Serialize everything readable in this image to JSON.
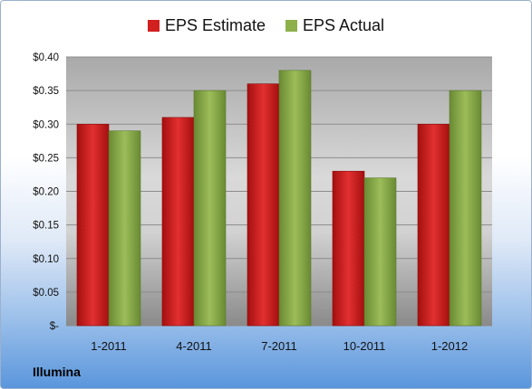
{
  "chart_data": {
    "type": "bar",
    "title": "",
    "xlabel": "",
    "ylabel": "",
    "categories": [
      "1-2011",
      "4-2011",
      "7-2011",
      "10-2011",
      "1-2012"
    ],
    "series": [
      {
        "name": "EPS Estimate",
        "values": [
          0.3,
          0.31,
          0.36,
          0.23,
          0.3
        ],
        "color": "#d21f1f"
      },
      {
        "name": "EPS Actual",
        "values": [
          0.29,
          0.35,
          0.38,
          0.22,
          0.35
        ],
        "color": "#8db04a"
      }
    ],
    "ylim": [
      0,
      0.4
    ],
    "y_ticks": [
      {
        "value": 0.4,
        "label": "$0.40"
      },
      {
        "value": 0.35,
        "label": "$0.35"
      },
      {
        "value": 0.3,
        "label": "$0.30"
      },
      {
        "value": 0.25,
        "label": "$0.25"
      },
      {
        "value": 0.2,
        "label": "$0.20"
      },
      {
        "value": 0.15,
        "label": "$0.15"
      },
      {
        "value": 0.1,
        "label": "$0.10"
      },
      {
        "value": 0.05,
        "label": "$0.05"
      },
      {
        "value": 0.0,
        "label": "$-"
      }
    ],
    "grid": true,
    "legend_position": "top-center"
  },
  "footer": {
    "company": "Illumina"
  }
}
